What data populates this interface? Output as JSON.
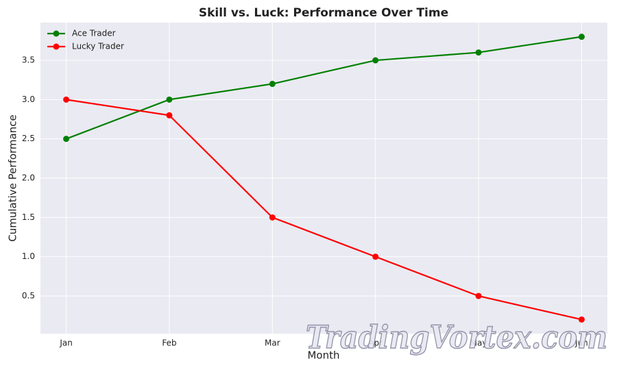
{
  "chart_data": {
    "type": "line",
    "title": "Skill vs. Luck: Performance Over Time",
    "x_label": "Month",
    "y_label": "Cumulative Performance",
    "categories": [
      "Jan",
      "Feb",
      "Mar",
      "Apr",
      "May",
      "Jun"
    ],
    "series": [
      {
        "name": "Ace Trader",
        "color": "#008000",
        "values": [
          2.5,
          3.0,
          3.2,
          3.5,
          3.6,
          3.8
        ]
      },
      {
        "name": "Lucky Trader",
        "color": "#ff0000",
        "values": [
          3.0,
          2.8,
          1.5,
          1.0,
          0.5,
          0.2
        ]
      }
    ],
    "ylim": [
      0.02,
      3.98
    ],
    "yticks": [
      0.5,
      {
        "value": 1,
        "label": "1.0"
      },
      1.5,
      {
        "value": 2,
        "label": "2.0"
      },
      2.5,
      {
        "value": 3,
        "label": "3.0"
      },
      3.5
    ],
    "grid": true,
    "legend": "upper-left",
    "background": "#eaeaf2",
    "watermark": "TradingVortex.com"
  }
}
